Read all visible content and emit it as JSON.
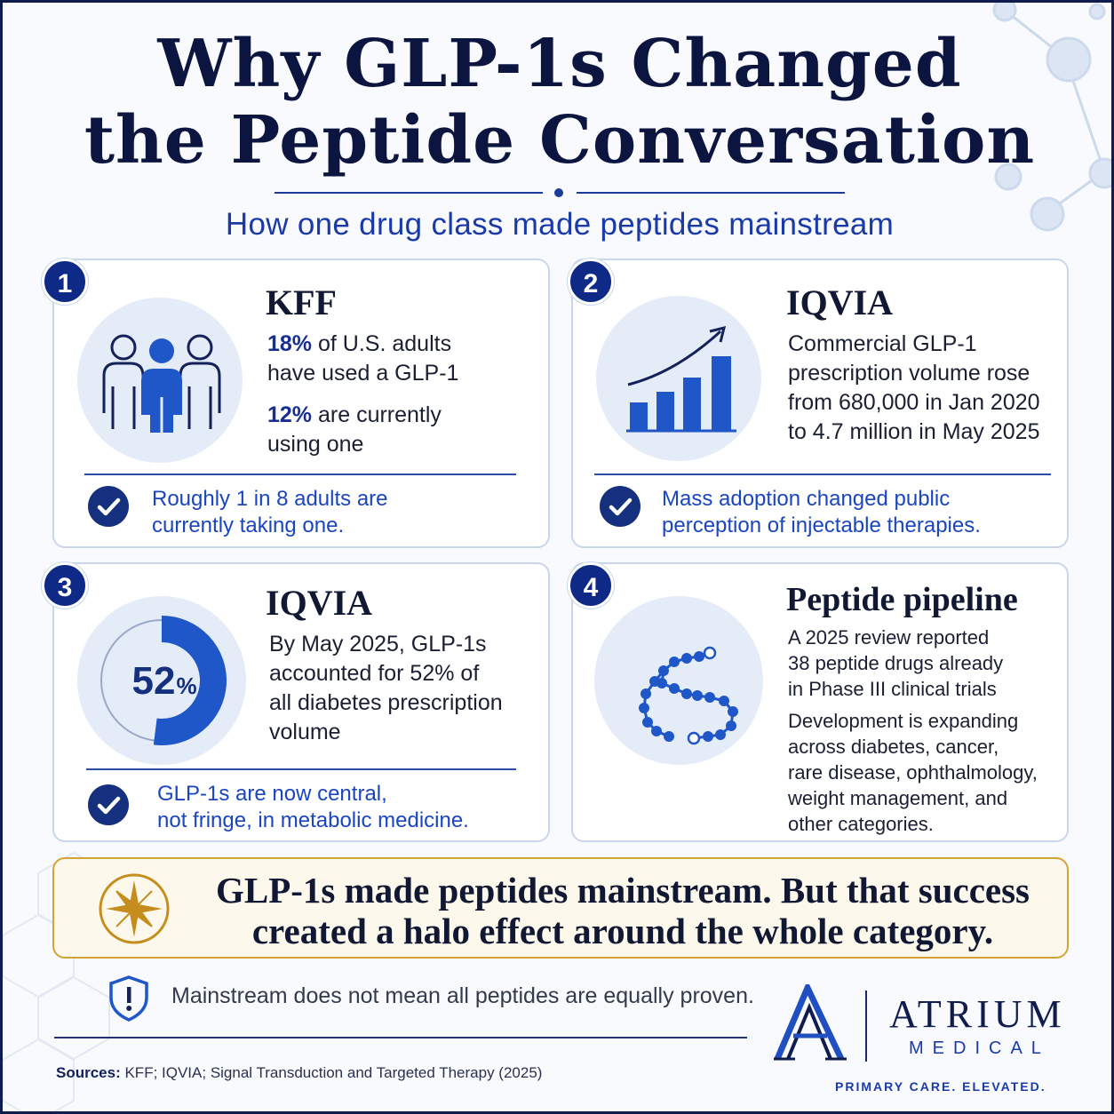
{
  "title": {
    "line1": "Why GLP-1s Changed",
    "line2": "the Peptide Conversation"
  },
  "subtitle": "How one drug class made peptides mainstream",
  "cards": [
    {
      "number": "1",
      "heading": "KFF",
      "stat1_value": "18%",
      "stat1_rest_a": " of U.S. adults",
      "stat1_rest_b": "have used a GLP-1",
      "stat2_value": "12%",
      "stat2_rest_a": " are currently",
      "stat2_rest_b": "using one",
      "note_line1": "Roughly 1 in 8 adults are",
      "note_line2": "currently taking one.",
      "icon": "people-icon"
    },
    {
      "number": "2",
      "heading": "IQVIA",
      "lines": [
        "Commercial GLP-1",
        "prescription volume rose",
        "from 680,000 in Jan 2020",
        "to 4.7 million in May 2025"
      ],
      "note_line1": "Mass adoption changed public",
      "note_line2": "perception of injectable therapies.",
      "icon": "bar-growth-icon"
    },
    {
      "number": "3",
      "heading": "IQVIA",
      "gauge_value": 52,
      "gauge_label": "52",
      "gauge_unit": "%",
      "lines": [
        "By May 2025, GLP-1s",
        "accounted for 52% of",
        "all diabetes prescription",
        "volume"
      ],
      "note_line1": "GLP-1s are now central,",
      "note_line2": "not fringe, in metabolic medicine.",
      "icon": "donut-gauge-icon"
    },
    {
      "number": "4",
      "heading": "Peptide pipeline",
      "para1": [
        "A 2025 review reported",
        "38 peptide drugs already",
        "in Phase III clinical trials"
      ],
      "para2": [
        "Development is expanding",
        "across diabetes, cancer,",
        "rare disease, ophthalmology,",
        "weight management, and",
        "other categories."
      ],
      "icon": "peptide-chain-icon"
    }
  ],
  "banner": {
    "line1": "GLP-1s made peptides mainstream. But that success",
    "line2": "created a halo effect around the whole category.",
    "icon": "compass-star-icon"
  },
  "warning": {
    "text": "Mainstream does not mean all peptides are equally proven.",
    "icon": "shield-alert-icon"
  },
  "sources": {
    "label": "Sources:",
    "text": " KFF; IQVIA; Signal Transduction and Targeted Therapy (2025)"
  },
  "brand": {
    "name": "ATRIUM",
    "sub": "MEDICAL",
    "tagline": "PRIMARY CARE. ELEVATED.",
    "logo": "atrium-a-logo"
  },
  "colors": {
    "navy": "#0f1c4d",
    "accent_blue": "#1a45c0",
    "gold": "#d2a437"
  }
}
